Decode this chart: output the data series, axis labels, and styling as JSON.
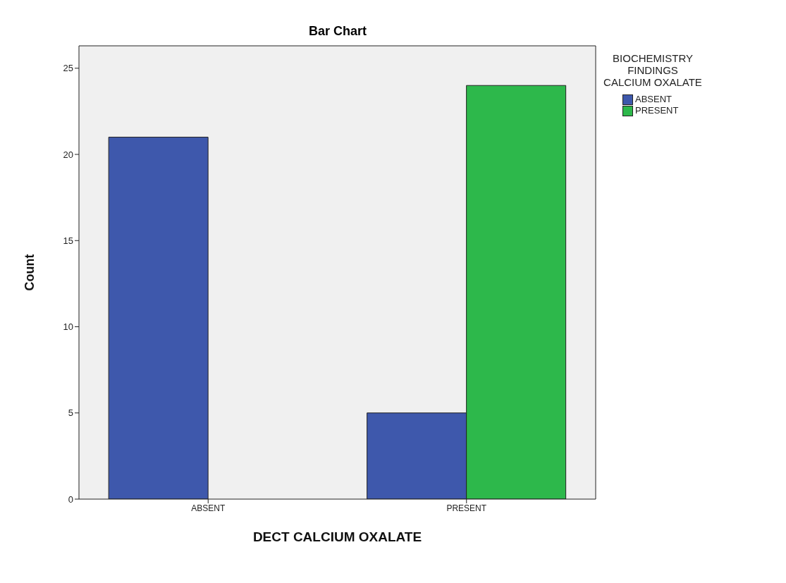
{
  "chart_data": {
    "type": "bar",
    "title": "Bar Chart",
    "xlabel": "DECT CALCIUM OXALATE",
    "ylabel": "Count",
    "legend_title": "BIOCHEMISTRY FINDINGS CALCIUM OXALATE",
    "categories": [
      "ABSENT",
      "PRESENT"
    ],
    "series": [
      {
        "name": "ABSENT",
        "color": "#3e58ac",
        "values": [
          21,
          5
        ]
      },
      {
        "name": "PRESENT",
        "color": "#2db84b",
        "values": [
          null,
          24
        ]
      }
    ],
    "ylim": [
      0,
      26.3
    ],
    "yticks": [
      0,
      5,
      10,
      15,
      20,
      25
    ],
    "grid": false,
    "legend": "top right"
  }
}
